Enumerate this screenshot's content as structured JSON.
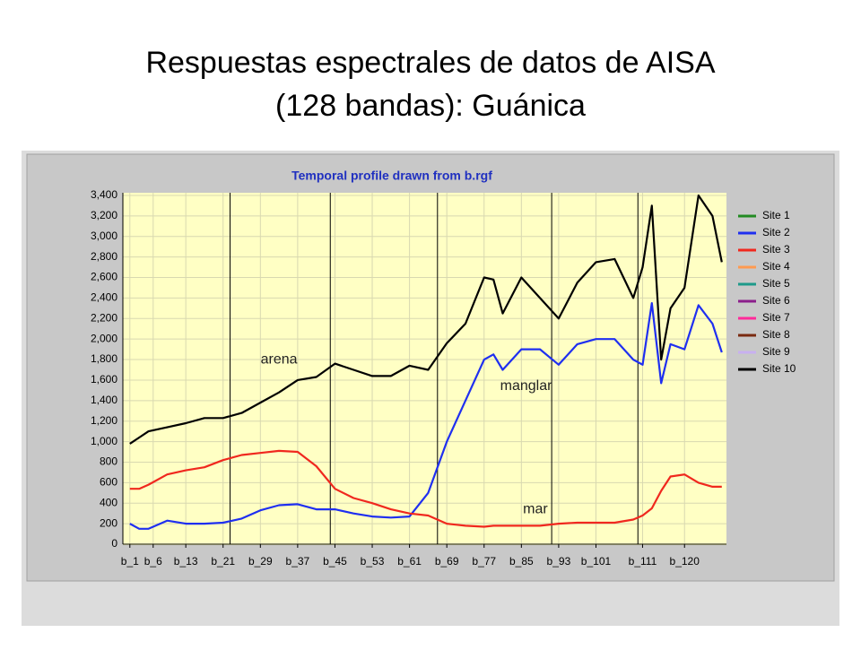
{
  "title_lines": [
    "Respuestas espectrales de datos de AISA",
    "(128 bandas): Guánica"
  ],
  "chart_data": {
    "type": "line",
    "title": "Temporal profile drawn from b.rgf",
    "x": [
      1,
      3,
      5,
      9,
      13,
      17,
      21,
      25,
      29,
      33,
      37,
      41,
      45,
      49,
      53,
      57,
      61,
      65,
      69,
      73,
      77,
      79,
      81,
      85,
      89,
      93,
      97,
      101,
      105,
      109,
      111,
      113,
      115,
      117,
      120,
      123,
      126,
      128
    ],
    "xlim": [
      -0.5,
      129
    ],
    "xticks": [
      {
        "value": 1,
        "label": "b_1"
      },
      {
        "value": 6,
        "label": "b_6"
      },
      {
        "value": 13,
        "label": "b_13"
      },
      {
        "value": 21,
        "label": "b_21"
      },
      {
        "value": 29,
        "label": "b_29"
      },
      {
        "value": 37,
        "label": "b_37"
      },
      {
        "value": 45,
        "label": "b_45"
      },
      {
        "value": 53,
        "label": "b_53"
      },
      {
        "value": 61,
        "label": "b_61"
      },
      {
        "value": 69,
        "label": "b_69"
      },
      {
        "value": 77,
        "label": "b_77"
      },
      {
        "value": 85,
        "label": "b_85"
      },
      {
        "value": 93,
        "label": "b_93"
      },
      {
        "value": 101,
        "label": "b_101"
      },
      {
        "value": 111,
        "label": "b_111"
      },
      {
        "value": 120,
        "label": "b_120"
      }
    ],
    "ylim": [
      0,
      3400
    ],
    "yticks": [
      0,
      200,
      400,
      600,
      800,
      {
        "value": 1000,
        "label": "1,000"
      },
      {
        "value": 1200,
        "label": "1,200"
      },
      {
        "value": 1400,
        "label": "1,400"
      },
      {
        "value": 1600,
        "label": "1,600"
      },
      {
        "value": 1800,
        "label": "1,800"
      },
      {
        "value": 2000,
        "label": "2,000"
      },
      {
        "value": 2200,
        "label": "2,200"
      },
      {
        "value": 2400,
        "label": "2,400"
      },
      {
        "value": 2600,
        "label": "2,600"
      },
      {
        "value": 2800,
        "label": "2,800"
      },
      {
        "value": 3000,
        "label": "3,000"
      },
      {
        "value": 3200,
        "label": "3,200"
      },
      {
        "value": 3400,
        "label": "3,400"
      }
    ],
    "grid": true,
    "vlines": [
      22.5,
      44,
      67,
      91.5,
      110
    ],
    "annotations": [
      {
        "text": "arena",
        "x": 33,
        "y": 1800
      },
      {
        "text": "manglar",
        "x": 86,
        "y": 1540
      },
      {
        "text": "mar",
        "x": 88,
        "y": 340
      }
    ],
    "series": [
      {
        "name": "Site 1",
        "color": "#228b22",
        "values": [
          null,
          null,
          null,
          null,
          null,
          null,
          null,
          null,
          null,
          null,
          null,
          null,
          null,
          null,
          null,
          null,
          null,
          null,
          null,
          null,
          null,
          null,
          null,
          null,
          null,
          null,
          null,
          null,
          null,
          null,
          null,
          null,
          null,
          null,
          null,
          null,
          null,
          null
        ]
      },
      {
        "name": "Site 2",
        "color": "#1f2ff0",
        "values": [
          200,
          150,
          150,
          230,
          200,
          200,
          210,
          250,
          330,
          380,
          390,
          340,
          340,
          300,
          270,
          260,
          270,
          500,
          1000,
          1400,
          1800,
          1850,
          1700,
          1900,
          1900,
          1750,
          1950,
          2000,
          2000,
          1800,
          1750,
          2350,
          1570,
          1950,
          1900,
          2330,
          2150,
          1870
        ]
      },
      {
        "name": "Site 3",
        "color": "#f0281e",
        "values": [
          540,
          540,
          580,
          680,
          720,
          750,
          820,
          870,
          890,
          910,
          900,
          760,
          540,
          450,
          400,
          340,
          300,
          280,
          200,
          180,
          170,
          180,
          180,
          180,
          180,
          200,
          210,
          210,
          210,
          240,
          280,
          350,
          520,
          660,
          680,
          600,
          560,
          560
        ]
      },
      {
        "name": "Site 4",
        "color": "#ff9a50",
        "values": [
          null,
          null,
          null,
          null,
          null,
          null,
          null,
          null,
          null,
          null,
          null,
          null,
          null,
          null,
          null,
          null,
          null,
          null,
          null,
          null,
          null,
          null,
          null,
          null,
          null,
          null,
          null,
          null,
          null,
          null,
          null,
          null,
          null,
          null,
          null,
          null,
          null,
          null
        ]
      },
      {
        "name": "Site 5",
        "color": "#1e9a8a",
        "values": [
          null,
          null,
          null,
          null,
          null,
          null,
          null,
          null,
          null,
          null,
          null,
          null,
          null,
          null,
          null,
          null,
          null,
          null,
          null,
          null,
          null,
          null,
          null,
          null,
          null,
          null,
          null,
          null,
          null,
          null,
          null,
          null,
          null,
          null,
          null,
          null,
          null,
          null
        ]
      },
      {
        "name": "Site 6",
        "color": "#8b1e8b",
        "values": [
          null,
          null,
          null,
          null,
          null,
          null,
          null,
          null,
          null,
          null,
          null,
          null,
          null,
          null,
          null,
          null,
          null,
          null,
          null,
          null,
          null,
          null,
          null,
          null,
          null,
          null,
          null,
          null,
          null,
          null,
          null,
          null,
          null,
          null,
          null,
          null,
          null,
          null
        ]
      },
      {
        "name": "Site 7",
        "color": "#ff2a9a",
        "values": [
          null,
          null,
          null,
          null,
          null,
          null,
          null,
          null,
          null,
          null,
          null,
          null,
          null,
          null,
          null,
          null,
          null,
          null,
          null,
          null,
          null,
          null,
          null,
          null,
          null,
          null,
          null,
          null,
          null,
          null,
          null,
          null,
          null,
          null,
          null,
          null,
          null,
          null
        ]
      },
      {
        "name": "Site 8",
        "color": "#7a2a10",
        "values": [
          null,
          null,
          null,
          null,
          null,
          null,
          null,
          null,
          null,
          null,
          null,
          null,
          null,
          null,
          null,
          null,
          null,
          null,
          null,
          null,
          null,
          null,
          null,
          null,
          null,
          null,
          null,
          null,
          null,
          null,
          null,
          null,
          null,
          null,
          null,
          null,
          null,
          null
        ]
      },
      {
        "name": "Site 9",
        "color": "#c8b0f0",
        "values": [
          null,
          null,
          null,
          null,
          null,
          null,
          null,
          null,
          null,
          null,
          null,
          null,
          null,
          null,
          null,
          null,
          null,
          null,
          null,
          null,
          null,
          null,
          null,
          null,
          null,
          null,
          null,
          null,
          null,
          null,
          null,
          null,
          null,
          null,
          null,
          null,
          null,
          null
        ]
      },
      {
        "name": "Site 10",
        "color": "#000000",
        "values": [
          980,
          1040,
          1100,
          1140,
          1180,
          1230,
          1230,
          1280,
          1380,
          1480,
          1600,
          1630,
          1760,
          1700,
          1640,
          1640,
          1740,
          1700,
          1960,
          2150,
          2600,
          2580,
          2250,
          2600,
          2400,
          2200,
          2550,
          2750,
          2780,
          2400,
          2700,
          3300,
          1800,
          2300,
          2500,
          3400,
          3200,
          2750
        ]
      }
    ]
  }
}
